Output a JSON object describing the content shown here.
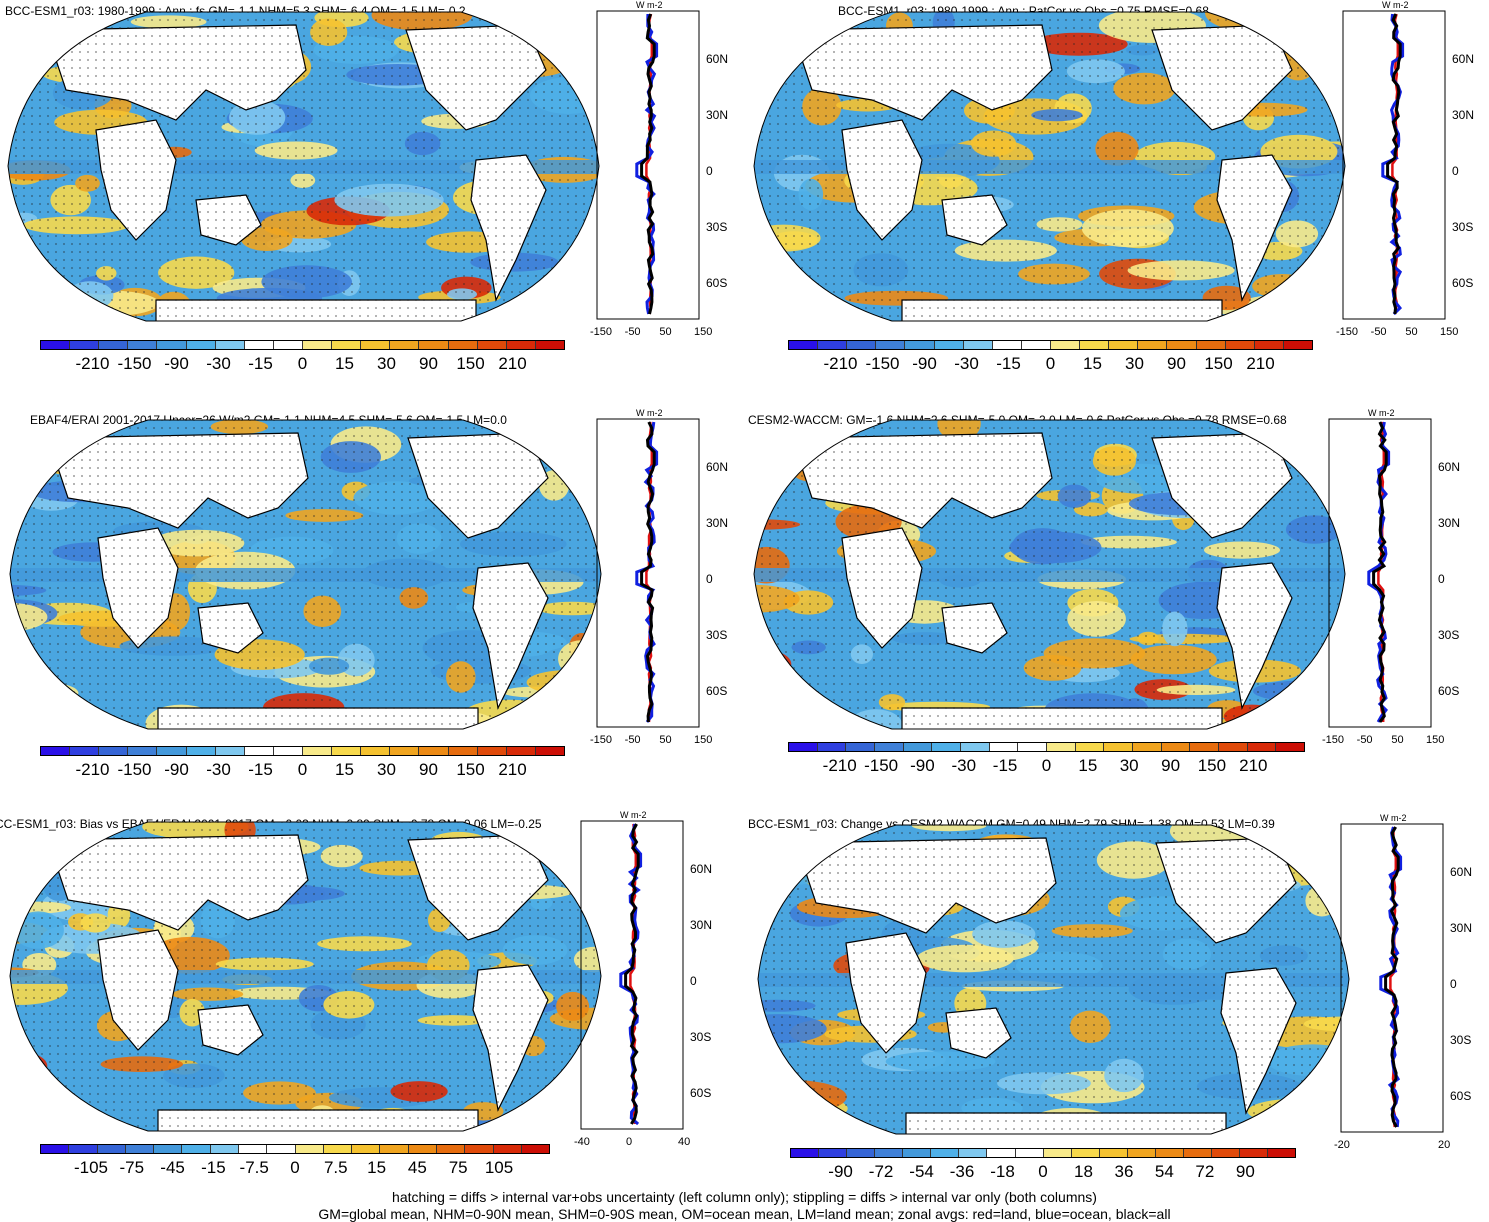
{
  "panels": [
    {
      "title": "BCC-ESM1_r03: 1980-1999 : Ann : fs GM=-1.1 NHM=5.3 SHM=-6.4 OM=-1.5 LM=-0.2",
      "colorbar_labels": [
        "-210",
        "-150",
        "-90",
        "-30",
        "-15",
        "0",
        "15",
        "30",
        "90",
        "150",
        "210"
      ],
      "zonal_xticks": [
        "-150",
        "-50",
        "50",
        "150"
      ],
      "lat_labels": [
        "60N",
        "30N",
        "0",
        "30S",
        "60S"
      ],
      "units": "W m-2"
    },
    {
      "title": "BCC-ESM1_r03: 1980-1999 : Ann : PatCor vs Obs =0.75 RMSE=0.68",
      "colorbar_labels": [
        "-210",
        "-150",
        "-90",
        "-30",
        "-15",
        "0",
        "15",
        "30",
        "90",
        "150",
        "210"
      ],
      "zonal_xticks": [
        "-150",
        "-50",
        "50",
        "150"
      ],
      "lat_labels": [
        "60N",
        "30N",
        "0",
        "30S",
        "60S"
      ],
      "units": "W m-2"
    },
    {
      "title": "EBAF4/ERAI 2001-2017 Uncer=26 W/m2 GM=-1.1 NHM=4.5 SHM=-5.6 OM=-1.5 LM=0.0",
      "colorbar_labels": [
        "-210",
        "-150",
        "-90",
        "-30",
        "-15",
        "0",
        "15",
        "30",
        "90",
        "150",
        "210"
      ],
      "zonal_xticks": [
        "-150",
        "-50",
        "50",
        "150"
      ],
      "lat_labels": [
        "60N",
        "30N",
        "0",
        "30S",
        "60S"
      ],
      "units": "W m-2"
    },
    {
      "title": "CESM2-WACCM: GM=-1.6 NHM=2.6 SHM=-5.0 OM=-2.0 LM=-0.6 PatCor vs Obs =0.78 RMSE=0.68",
      "colorbar_labels": [
        "-210",
        "-150",
        "-90",
        "-30",
        "-15",
        "0",
        "15",
        "30",
        "90",
        "150",
        "210"
      ],
      "zonal_xticks": [
        "-150",
        "-50",
        "50",
        "150"
      ],
      "lat_labels": [
        "60N",
        "30N",
        "0",
        "30S",
        "60S"
      ],
      "units": "W m-2"
    },
    {
      "title": "CC-ESM1_r03: Bias vs EBAF4/ERAI 2001-2017 GM=-0.03 NHM=0.89 SHM=-0.78 OM=0.06 LM=-0.25",
      "colorbar_labels": [
        "-105",
        "-75",
        "-45",
        "-15",
        "-7.5",
        "0",
        "7.5",
        "15",
        "45",
        "75",
        "105"
      ],
      "zonal_xticks": [
        "-40",
        "0",
        "40"
      ],
      "lat_labels": [
        "60N",
        "30N",
        "0",
        "30S",
        "60S"
      ],
      "units": "W m-2"
    },
    {
      "title": "BCC-ESM1_r03: Change vs CESM2-WACCM GM=0.49 NHM=2.79 SHM=-1.38 OM=0.53 LM=0.39",
      "colorbar_labels": [
        "-90",
        "-72",
        "-54",
        "-36",
        "-18",
        "0",
        "18",
        "36",
        "54",
        "72",
        "90"
      ],
      "zonal_xticks": [
        "-20",
        "20"
      ],
      "lat_labels": [
        "60N",
        "30N",
        "0",
        "30S",
        "60S"
      ],
      "units": "W m-2"
    }
  ],
  "colors": {
    "scale": [
      "#2a10e8",
      "#2f3fe0",
      "#3565d6",
      "#3f80d8",
      "#4399db",
      "#4fb0e8",
      "#7fc8ef",
      "#ffffff",
      "#ffffff",
      "#f8ea8a",
      "#f7d94c",
      "#f5c230",
      "#f0a520",
      "#ec8a15",
      "#e66c0e",
      "#e04a0a",
      "#d82a08",
      "#cc0e05"
    ],
    "land": "#ffffff",
    "ocean_neg": "#4aa6e0",
    "ocean_pos": "#f3c445",
    "zonal_land": "#e01010",
    "zonal_ocean": "#1020e0",
    "zonal_all": "#000000"
  },
  "footer": {
    "line1": "hatching = diffs > internal var+obs uncertainty (left column only); stippling = diffs > internal var only (both columns)",
    "line2": "GM=global mean, NHM=0-90N mean, SHM=0-90S mean, OM=ocean mean, LM=land mean; zonal avgs: red=land, blue=ocean, black=all"
  }
}
